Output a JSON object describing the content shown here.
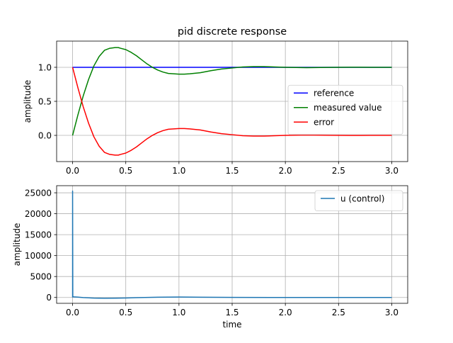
{
  "chart_data": [
    {
      "type": "line",
      "title": "pid discrete response",
      "xlabel": "",
      "ylabel": "amplitude",
      "xlim": [
        -0.15,
        3.15
      ],
      "ylim": [
        -0.385,
        1.385
      ],
      "xticks": [
        0.0,
        0.5,
        1.0,
        1.5,
        2.0,
        2.5,
        3.0
      ],
      "xtick_labels": [
        "0.0",
        "0.5",
        "1.0",
        "1.5",
        "2.0",
        "2.5",
        "3.0"
      ],
      "yticks": [
        0.0,
        0.5,
        1.0
      ],
      "ytick_labels": [
        "0.0",
        "0.5",
        "1.0"
      ],
      "grid": true,
      "legend": "center-right",
      "series": [
        {
          "name": "reference",
          "color": "#0000ff",
          "x": [
            0,
            3
          ],
          "y": [
            1,
            1
          ]
        },
        {
          "name": "measured value",
          "color": "#008000",
          "x": [
            0.0,
            0.05,
            0.1,
            0.15,
            0.2,
            0.25,
            0.3,
            0.35,
            0.4,
            0.43,
            0.45,
            0.5,
            0.55,
            0.6,
            0.65,
            0.7,
            0.75,
            0.8,
            0.85,
            0.9,
            0.95,
            1.0,
            1.05,
            1.1,
            1.2,
            1.3,
            1.4,
            1.5,
            1.6,
            1.7,
            1.8,
            1.9,
            2.0,
            2.2,
            2.4,
            2.6,
            2.8,
            3.0
          ],
          "y": [
            0.0,
            0.3,
            0.58,
            0.82,
            1.02,
            1.16,
            1.25,
            1.28,
            1.29,
            1.29,
            1.28,
            1.26,
            1.22,
            1.17,
            1.11,
            1.05,
            1.0,
            0.96,
            0.93,
            0.91,
            0.905,
            0.9,
            0.9,
            0.905,
            0.92,
            0.95,
            0.975,
            0.99,
            1.005,
            1.01,
            1.01,
            1.005,
            1.0,
            0.995,
            0.998,
            1.001,
            1.0,
            1.0
          ]
        },
        {
          "name": "error",
          "color": "#ff0000",
          "x": [
            0.0,
            0.05,
            0.1,
            0.15,
            0.2,
            0.25,
            0.3,
            0.35,
            0.4,
            0.43,
            0.45,
            0.5,
            0.55,
            0.6,
            0.65,
            0.7,
            0.75,
            0.8,
            0.85,
            0.9,
            0.95,
            1.0,
            1.05,
            1.1,
            1.2,
            1.3,
            1.4,
            1.5,
            1.6,
            1.7,
            1.8,
            1.9,
            2.0,
            2.2,
            2.4,
            2.6,
            2.8,
            3.0
          ],
          "y": [
            1.0,
            0.7,
            0.42,
            0.18,
            -0.02,
            -0.16,
            -0.25,
            -0.28,
            -0.29,
            -0.29,
            -0.28,
            -0.26,
            -0.22,
            -0.17,
            -0.11,
            -0.05,
            0.0,
            0.04,
            0.07,
            0.09,
            0.095,
            0.1,
            0.1,
            0.095,
            0.08,
            0.05,
            0.025,
            0.01,
            -0.005,
            -0.01,
            -0.01,
            -0.005,
            0.0,
            0.005,
            0.002,
            -0.001,
            0.0,
            0.0
          ]
        }
      ]
    },
    {
      "type": "line",
      "title": "",
      "xlabel": "time",
      "ylabel": "amplitude",
      "xlim": [
        -0.15,
        3.15
      ],
      "ylim": [
        -1400,
        26700
      ],
      "xticks": [
        0.0,
        0.5,
        1.0,
        1.5,
        2.0,
        2.5,
        3.0
      ],
      "xtick_labels": [
        "0.0",
        "0.5",
        "1.0",
        "1.5",
        "2.0",
        "2.5",
        "3.0"
      ],
      "yticks": [
        0,
        5000,
        10000,
        15000,
        20000,
        25000
      ],
      "ytick_labels": [
        "0",
        "5000",
        "10000",
        "15000",
        "20000",
        "25000"
      ],
      "grid": true,
      "legend": "top-right",
      "series": [
        {
          "name": "u (control)",
          "color": "#1f77b4",
          "x": [
            0.0,
            0.0,
            0.002,
            0.01,
            0.05,
            0.1,
            0.2,
            0.3,
            0.4,
            0.5,
            0.6,
            0.8,
            1.0,
            1.2,
            1.5,
            2.0,
            2.5,
            3.0
          ],
          "y": [
            0,
            25400,
            200,
            150,
            80,
            -20,
            -150,
            -200,
            -180,
            -120,
            -50,
            50,
            100,
            60,
            20,
            0,
            0,
            0
          ]
        }
      ]
    }
  ]
}
